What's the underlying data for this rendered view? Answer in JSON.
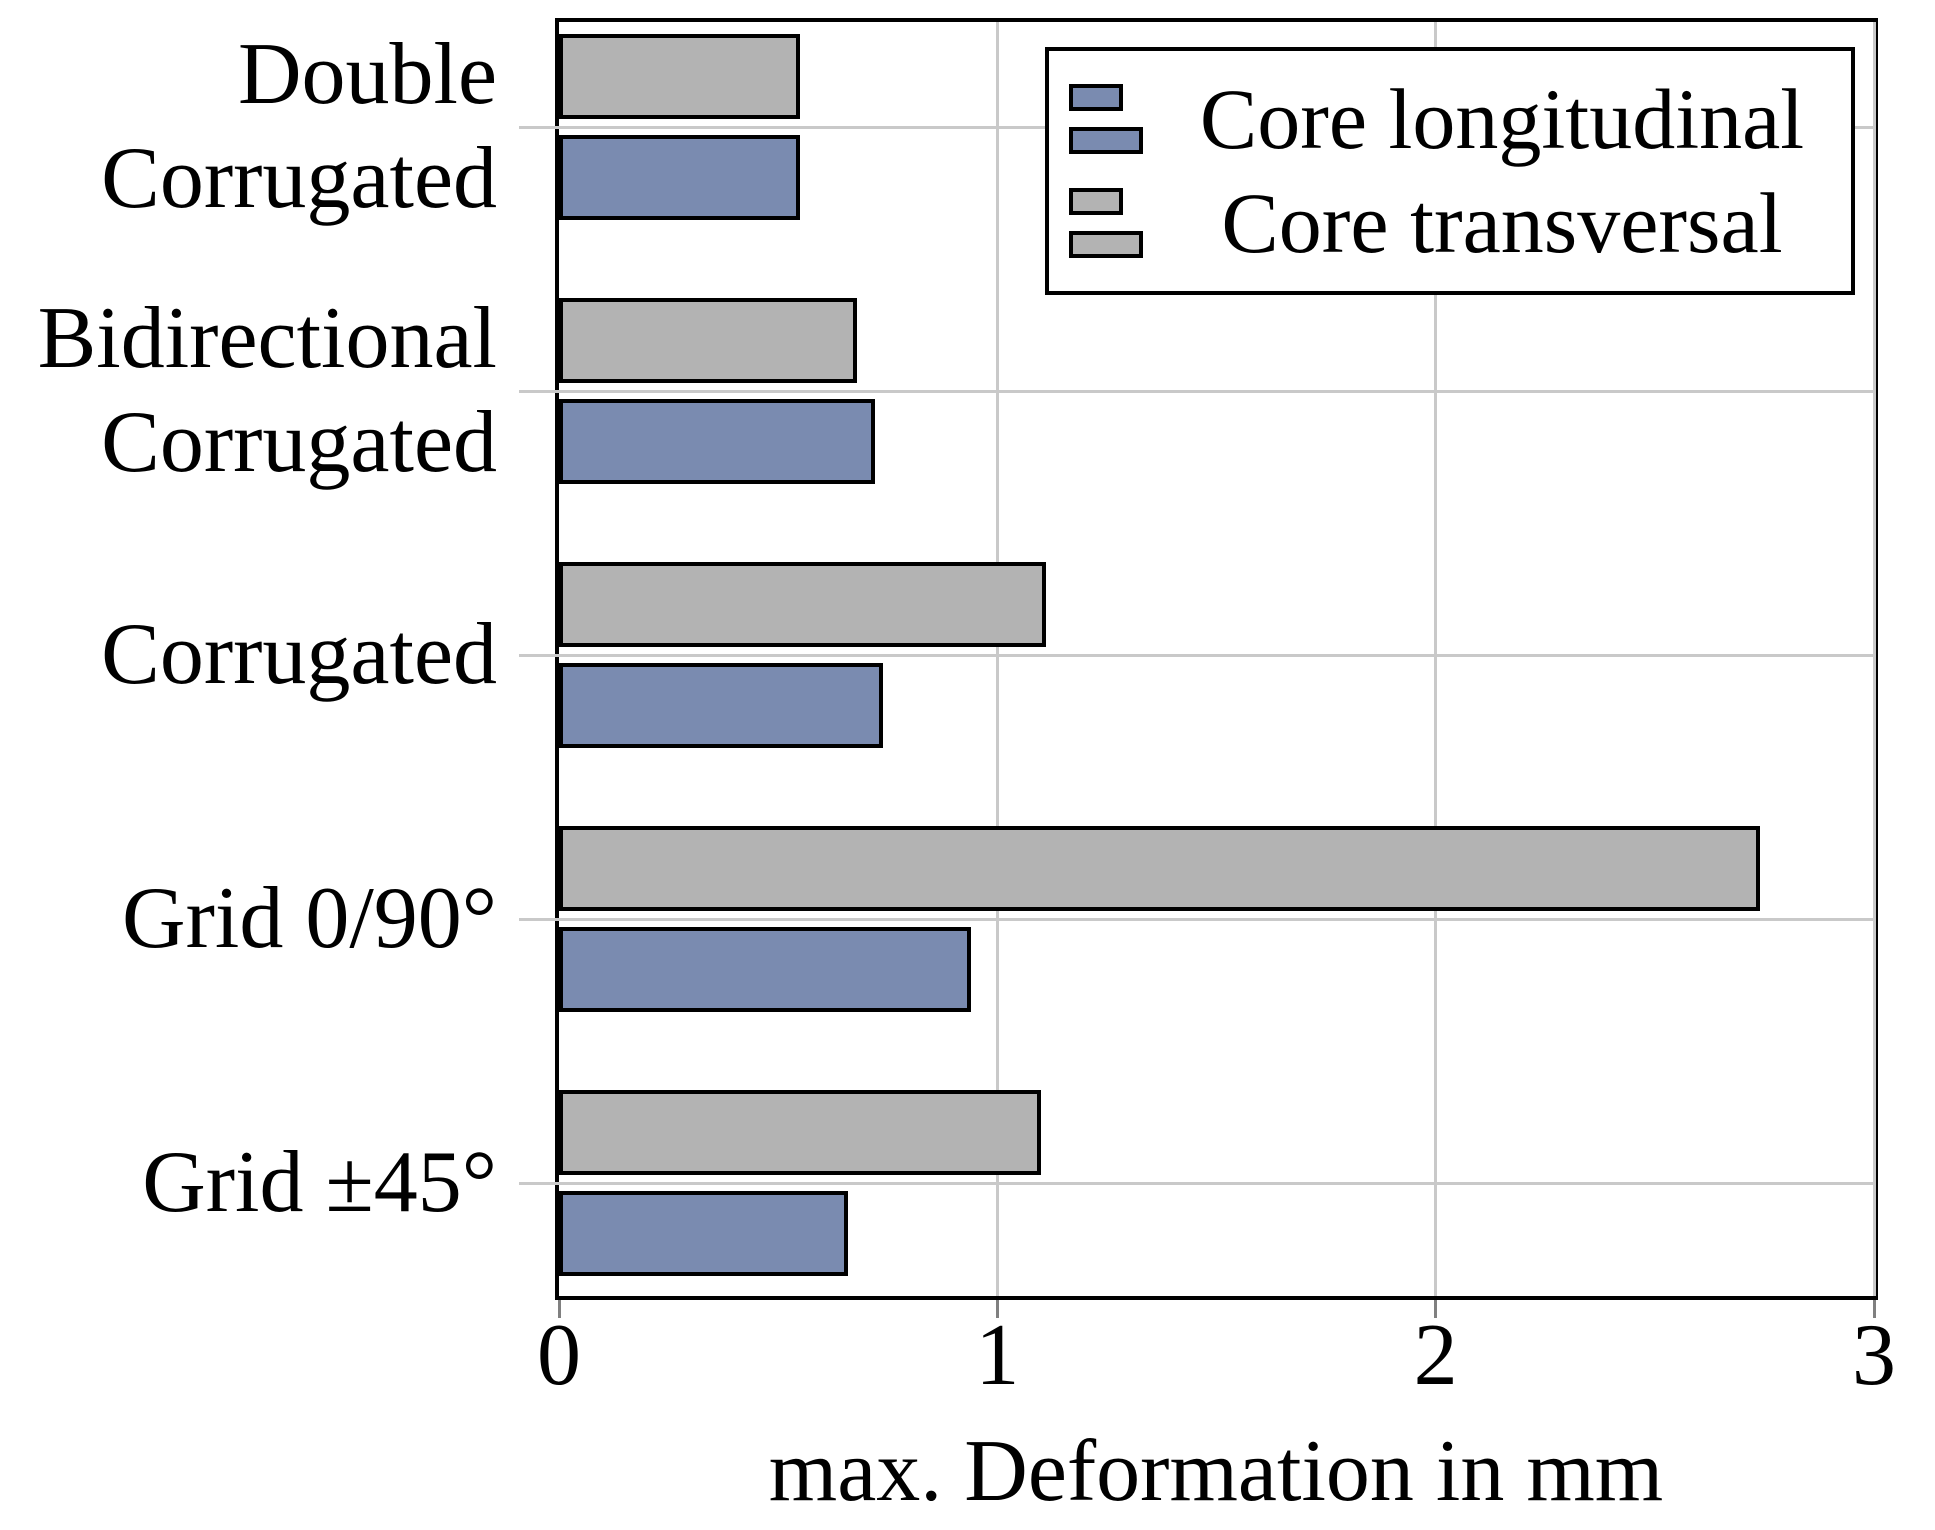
{
  "chart_data": {
    "type": "bar",
    "orientation": "horizontal",
    "title": "",
    "xlabel": "max. Deformation in mm",
    "ylabel": "",
    "xlim": [
      0,
      3
    ],
    "xticks": [
      "0",
      "1",
      "2",
      "3"
    ],
    "grid": true,
    "legend_position": "top-right-inside",
    "categories": [
      "Double Corrugated",
      "Bidirectional Corrugated",
      "Corrugated",
      "Grid 0/90°",
      "Grid ±45°"
    ],
    "category_lines": [
      [
        "Double",
        "Corrugated"
      ],
      [
        "Bidirectional",
        "Corrugated"
      ],
      [
        "Corrugated"
      ],
      [
        "Grid 0/90°"
      ],
      [
        "Grid ±45°"
      ]
    ],
    "series": [
      {
        "name": "Core longitudinal",
        "color": "#7A8BB0",
        "bar_position": "below-category-tick",
        "values": [
          0.55,
          0.72,
          0.74,
          0.94,
          0.66
        ]
      },
      {
        "name": "Core transversal",
        "color": "#B3B3B3",
        "bar_position": "above-category-tick",
        "values": [
          0.55,
          0.68,
          1.11,
          2.74,
          1.1
        ]
      }
    ]
  },
  "colors": {
    "bar_outline": "#000000",
    "plot_border": "#000000",
    "gridline": "#C9C9C9",
    "y_tick_stub": "#C9C9C9",
    "x_tick_stub": "#808080",
    "text": "#000000",
    "background": "#FFFFFF",
    "legend_background": "#FFFFFF"
  }
}
